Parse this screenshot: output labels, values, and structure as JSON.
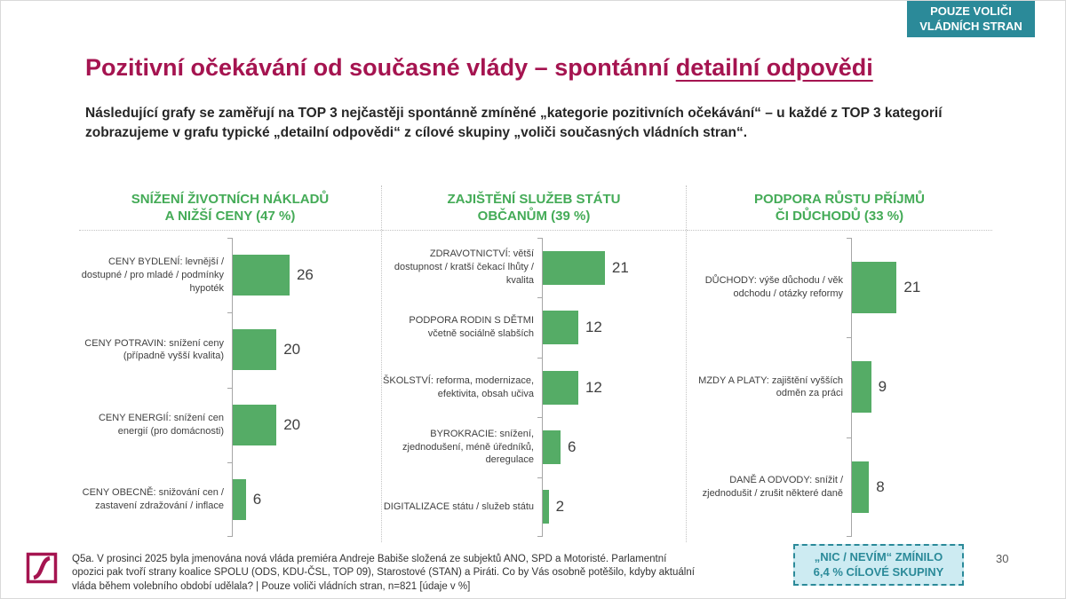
{
  "badge": {
    "text": "POUZE VOLIČI VLÁDNÍCH STRAN"
  },
  "title": {
    "main": "Pozitivní očekávání od současné vlády – spontánní ",
    "underlined": "detailní odpovědi"
  },
  "subtitle": "Následující grafy se zaměřují na TOP 3 nejčastěji spontánně zmíněné „kategorie pozitivních očekávání“ – u každé z TOP 3 kategorií zobrazujeme v grafu typické „detailní odpovědi“ z cílové skupiny „voliči současných vládních stran“.",
  "chart_data": [
    {
      "type": "bar",
      "orientation": "horizontal",
      "title": "SNÍŽENÍ ŽIVOTNÍCH NÁKLADŮ A NIŽŠÍ CENY (47 %)",
      "values_unit": "%",
      "categories": [
        "CENY BYDLENÍ: levnější / dostupné / pro mladé / podmínky hypoték",
        "CENY POTRAVIN: snížení ceny (případně vyšší kvalita)",
        "CENY ENERGIÍ: snížení cen energií (pro domácnosti)",
        "CENY OBECNĚ: snižování cen / zastavení zdražování / inflace"
      ],
      "values": [
        26,
        20,
        20,
        6
      ]
    },
    {
      "type": "bar",
      "orientation": "horizontal",
      "title": "ZAJIŠTĚNÍ SLUŽEB STÁTU OBČANŮM (39 %)",
      "values_unit": "%",
      "categories": [
        "ZDRAVOTNICTVÍ: větší dostupnost / kratší čekací lhůty / kvalita",
        "PODPORA RODIN S DĚTMI včetně sociálně slabších",
        "ŠKOLSTVÍ: reforma, modernizace, efektivita, obsah učiva",
        "BYROKRACIE: snížení, zjednodušení, méně úředníků, deregulace",
        "DIGITALIZACE státu / služeb státu"
      ],
      "values": [
        21,
        12,
        12,
        6,
        2
      ]
    },
    {
      "type": "bar",
      "orientation": "horizontal",
      "title": "PODPORA RŮSTU PŘÍJMŮ ČI DŮCHODŮ (33 %)",
      "values_unit": "%",
      "categories": [
        "DŮCHODY: výše důchodu / věk odchodu / otázky reformy",
        "MZDY A PLATY: zajištění vyšších odměn za práci",
        "DANĚ A ODVODY: snížit / zjednodušit / zrušit některé daně"
      ],
      "values": [
        21,
        9,
        8
      ]
    }
  ],
  "footnote": "Q5a. V prosinci 2025 byla jmenována nová vláda premiéra Andreje Babiše složená ze subjektů ANO, SPD a Motoristé. Parlamentní opozici pak tvoří strany koalice SPOLU (ODS, KDU-ČSL, TOP 09), Starostové (STAN) a Piráti. Co by Vás osobně potěšilo, kdyby aktuální vláda během volebního období udělala? | Pouze voliči vládních stran, n=821 [údaje v %]",
  "note_box": {
    "line1": "„NIC / NEVÍM“ ZMÍNILO",
    "line2": "6,4 % CÍLOVÉ SKUPINY"
  },
  "page_number": "30",
  "colors": {
    "accent_red": "#a51450",
    "teal": "#2b8a99",
    "note_bg": "#cdebf2",
    "green_header": "#44ab57",
    "green_bar": "#55ac66"
  }
}
